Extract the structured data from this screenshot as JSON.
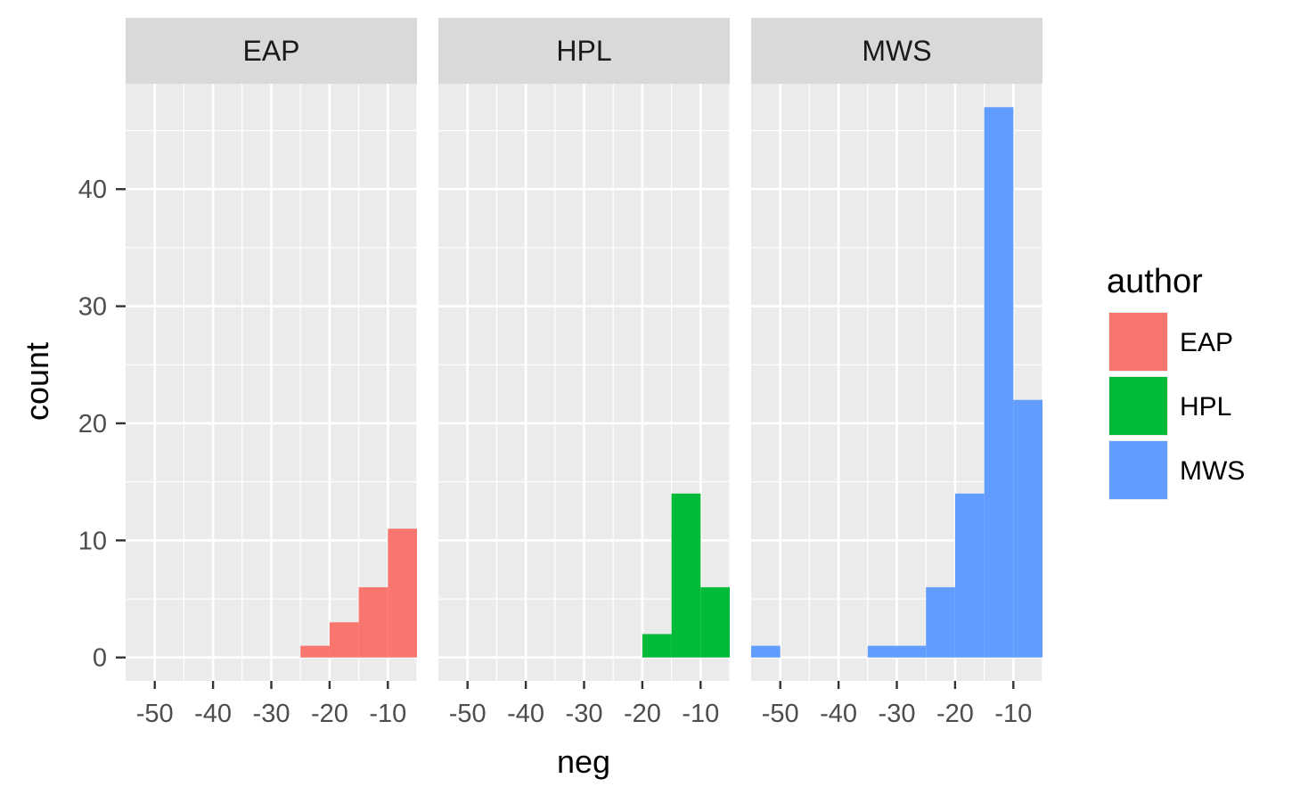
{
  "chart_data": {
    "type": "bar",
    "xlabel": "neg",
    "ylabel": "count",
    "x_ticks": [
      -50,
      -40,
      -30,
      -20,
      -10
    ],
    "y_ticks": [
      0,
      10,
      20,
      30,
      40
    ],
    "xlim": [
      -55,
      -5
    ],
    "ylim": [
      -2,
      49
    ],
    "bin_width": 5,
    "grid": true,
    "legend": {
      "title": "author",
      "placement": "right",
      "entries": [
        {
          "label": "EAP",
          "color": "#F8766D"
        },
        {
          "label": "HPL",
          "color": "#00BA38"
        },
        {
          "label": "MWS",
          "color": "#619CFF"
        }
      ]
    },
    "facets": [
      {
        "label": "EAP",
        "color": "#F8766D",
        "bins": [
          {
            "x_start": -25,
            "x_end": -20,
            "count": 1
          },
          {
            "x_start": -20,
            "x_end": -15,
            "count": 3
          },
          {
            "x_start": -15,
            "x_end": -10,
            "count": 6
          },
          {
            "x_start": -10,
            "x_end": -5,
            "count": 11
          }
        ]
      },
      {
        "label": "HPL",
        "color": "#00BA38",
        "bins": [
          {
            "x_start": -20,
            "x_end": -15,
            "count": 2
          },
          {
            "x_start": -15,
            "x_end": -10,
            "count": 14
          },
          {
            "x_start": -10,
            "x_end": -5,
            "count": 6
          }
        ]
      },
      {
        "label": "MWS",
        "color": "#619CFF",
        "bins": [
          {
            "x_start": -55,
            "x_end": -50,
            "count": 1
          },
          {
            "x_start": -35,
            "x_end": -30,
            "count": 1
          },
          {
            "x_start": -30,
            "x_end": -25,
            "count": 1
          },
          {
            "x_start": -25,
            "x_end": -20,
            "count": 6
          },
          {
            "x_start": -20,
            "x_end": -15,
            "count": 14
          },
          {
            "x_start": -15,
            "x_end": -10,
            "count": 47
          },
          {
            "x_start": -10,
            "x_end": -5,
            "count": 22
          }
        ]
      }
    ]
  },
  "colors": {
    "panel_background": "#EBEBEB",
    "strip_background": "#D9D9D9",
    "grid_major": "#FFFFFF"
  }
}
